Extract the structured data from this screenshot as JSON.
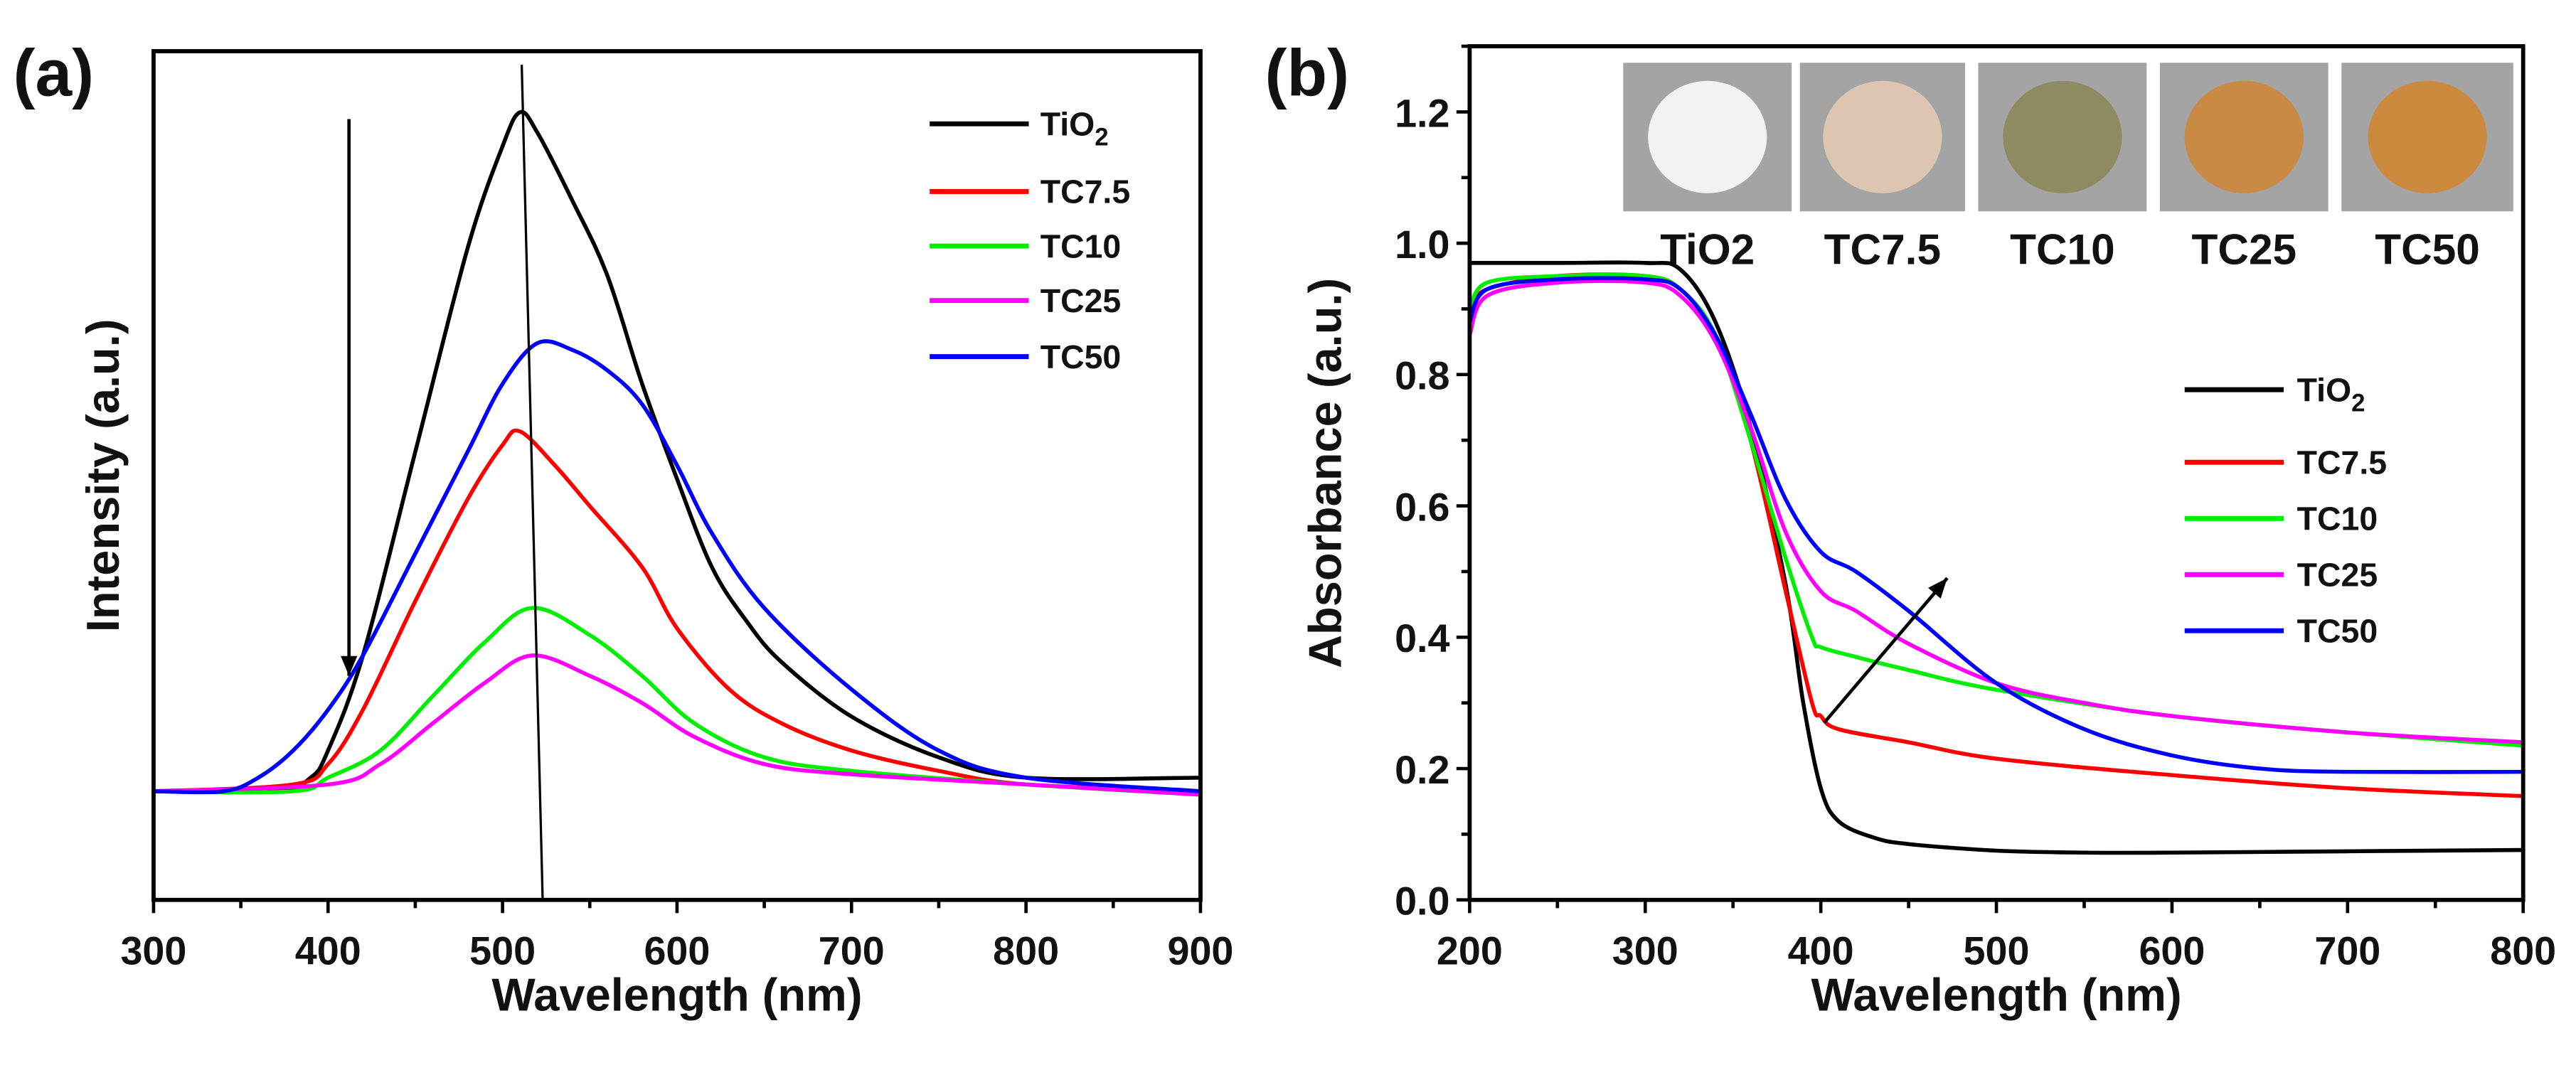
{
  "chart_data": [
    {
      "type": "line",
      "panel_label": "(a)",
      "xlabel": "Wavelength (nm)",
      "ylabel": "Intensity (a.u.)",
      "xlim": [
        300,
        900
      ],
      "ylim": [
        -0.16,
        1.09
      ],
      "xticks": [
        300,
        400,
        500,
        600,
        700,
        800,
        900
      ],
      "yticks": [],
      "grid": false,
      "legend_position": "top-right",
      "series": [
        {
          "name": "TiO2",
          "color": "#000000",
          "x": [
            300,
            370,
            390,
            400,
            420,
            450,
            480,
            500,
            510,
            520,
            540,
            560,
            580,
            600,
            620,
            640,
            660,
            700,
            750,
            800,
            900
          ],
          "y": [
            0,
            0,
            0.02,
            0.06,
            0.2,
            0.5,
            0.8,
            0.95,
            1.0,
            0.97,
            0.87,
            0.76,
            0.6,
            0.46,
            0.33,
            0.25,
            0.19,
            0.11,
            0.05,
            0.02,
            0.02
          ]
        },
        {
          "name": "TC7.5",
          "color": "#ff0000",
          "x": [
            300,
            380,
            400,
            420,
            450,
            480,
            500,
            510,
            530,
            550,
            580,
            600,
            630,
            660,
            700,
            750,
            800,
            900
          ],
          "y": [
            0,
            0.01,
            0.04,
            0.12,
            0.28,
            0.43,
            0.51,
            0.53,
            0.48,
            0.42,
            0.33,
            0.24,
            0.15,
            0.1,
            0.06,
            0.03,
            0.01,
            0.0
          ]
        },
        {
          "name": "TC10",
          "color": "#00ee00",
          "x": [
            300,
            380,
            400,
            430,
            460,
            490,
            517,
            550,
            580,
            610,
            650,
            700,
            800,
            900
          ],
          "y": [
            0,
            0,
            0.02,
            0.06,
            0.14,
            0.22,
            0.27,
            0.23,
            0.17,
            0.1,
            0.05,
            0.03,
            0.01,
            -0.005
          ]
        },
        {
          "name": "TC25",
          "color": "#ff00ff",
          "x": [
            300,
            400,
            430,
            460,
            490,
            517,
            550,
            580,
            610,
            650,
            700,
            800,
            900
          ],
          "y": [
            0,
            0.01,
            0.04,
            0.1,
            0.16,
            0.2,
            0.17,
            0.13,
            0.08,
            0.04,
            0.025,
            0.01,
            -0.005
          ]
        },
        {
          "name": "TC50",
          "color": "#0000ff",
          "x": [
            300,
            340,
            360,
            380,
            400,
            420,
            450,
            480,
            500,
            520,
            540,
            560,
            580,
            600,
            620,
            650,
            700,
            750,
            800,
            900
          ],
          "y": [
            0,
            0,
            0.02,
            0.06,
            0.12,
            0.2,
            0.35,
            0.5,
            0.6,
            0.66,
            0.65,
            0.62,
            0.57,
            0.48,
            0.38,
            0.27,
            0.15,
            0.06,
            0.02,
            0.0
          ]
        }
      ],
      "annotations": [
        {
          "kind": "arrow",
          "from": [
            412,
            0.99
          ],
          "to": [
            412,
            0.17
          ]
        },
        {
          "kind": "line",
          "from": [
            511,
            1.07
          ],
          "to": [
            523,
            -0.16
          ]
        }
      ]
    },
    {
      "type": "line",
      "panel_label": "(b)",
      "xlabel": "Wavelength (nm)",
      "ylabel": "Absorbance (a.u.)",
      "xlim": [
        200,
        800
      ],
      "ylim": [
        0,
        1.3
      ],
      "xticks": [
        200,
        300,
        400,
        500,
        600,
        700,
        800
      ],
      "yticks": [
        "0.0",
        "0.2",
        "0.4",
        "0.6",
        "0.8",
        "1.0",
        "1.2"
      ],
      "grid": false,
      "legend_position": "center-right",
      "series": [
        {
          "name": "TiO2",
          "color": "#000000",
          "x": [
            200,
            250,
            300,
            320,
            340,
            360,
            380,
            390,
            400,
            410,
            430,
            450,
            500,
            550,
            600,
            700,
            800
          ],
          "y": [
            0.97,
            0.97,
            0.97,
            0.96,
            0.88,
            0.72,
            0.48,
            0.3,
            0.17,
            0.12,
            0.095,
            0.085,
            0.075,
            0.072,
            0.072,
            0.074,
            0.076
          ]
        },
        {
          "name": "TC7.5",
          "color": "#ff0000",
          "x": [
            200,
            210,
            250,
            300,
            320,
            340,
            360,
            380,
            395,
            400,
            410,
            450,
            500,
            600,
            700,
            800
          ],
          "y": [
            0.9,
            0.93,
            0.95,
            0.95,
            0.93,
            0.86,
            0.7,
            0.47,
            0.3,
            0.28,
            0.26,
            0.24,
            0.215,
            0.19,
            0.17,
            0.158
          ]
        },
        {
          "name": "TC10",
          "color": "#00ee00",
          "x": [
            200,
            210,
            250,
            300,
            320,
            340,
            360,
            380,
            395,
            400,
            420,
            450,
            500,
            600,
            700,
            800
          ],
          "y": [
            0.9,
            0.94,
            0.95,
            0.95,
            0.93,
            0.86,
            0.7,
            0.52,
            0.4,
            0.385,
            0.37,
            0.35,
            0.32,
            0.28,
            0.255,
            0.235
          ]
        },
        {
          "name": "TC25",
          "color": "#ff00ff",
          "x": [
            200,
            210,
            250,
            300,
            320,
            340,
            360,
            380,
            400,
            420,
            450,
            500,
            550,
            600,
            700,
            800
          ],
          "y": [
            0.86,
            0.92,
            0.94,
            0.94,
            0.92,
            0.85,
            0.72,
            0.56,
            0.47,
            0.44,
            0.39,
            0.33,
            0.3,
            0.28,
            0.255,
            0.24
          ]
        },
        {
          "name": "TC50",
          "color": "#0000ff",
          "x": [
            200,
            210,
            250,
            300,
            320,
            340,
            360,
            380,
            400,
            420,
            450,
            500,
            550,
            600,
            650,
            700,
            800
          ],
          "y": [
            0.88,
            0.93,
            0.945,
            0.945,
            0.93,
            0.86,
            0.74,
            0.61,
            0.53,
            0.5,
            0.44,
            0.33,
            0.26,
            0.22,
            0.2,
            0.195,
            0.195
          ]
        }
      ],
      "annotations": [
        {
          "kind": "arrow",
          "from": [
            402,
            0.27
          ],
          "to": [
            472,
            0.49
          ]
        }
      ],
      "inset_photos": [
        {
          "label": "TiO2",
          "powder_color": "#f2f2f2"
        },
        {
          "label": "TC7.5",
          "powder_color": "#dcc6b2"
        },
        {
          "label": "TC10",
          "powder_color": "#8e8a62"
        },
        {
          "label": "TC25",
          "powder_color": "#c88a44"
        },
        {
          "label": "TC50",
          "powder_color": "#cc8a3e"
        }
      ]
    }
  ]
}
